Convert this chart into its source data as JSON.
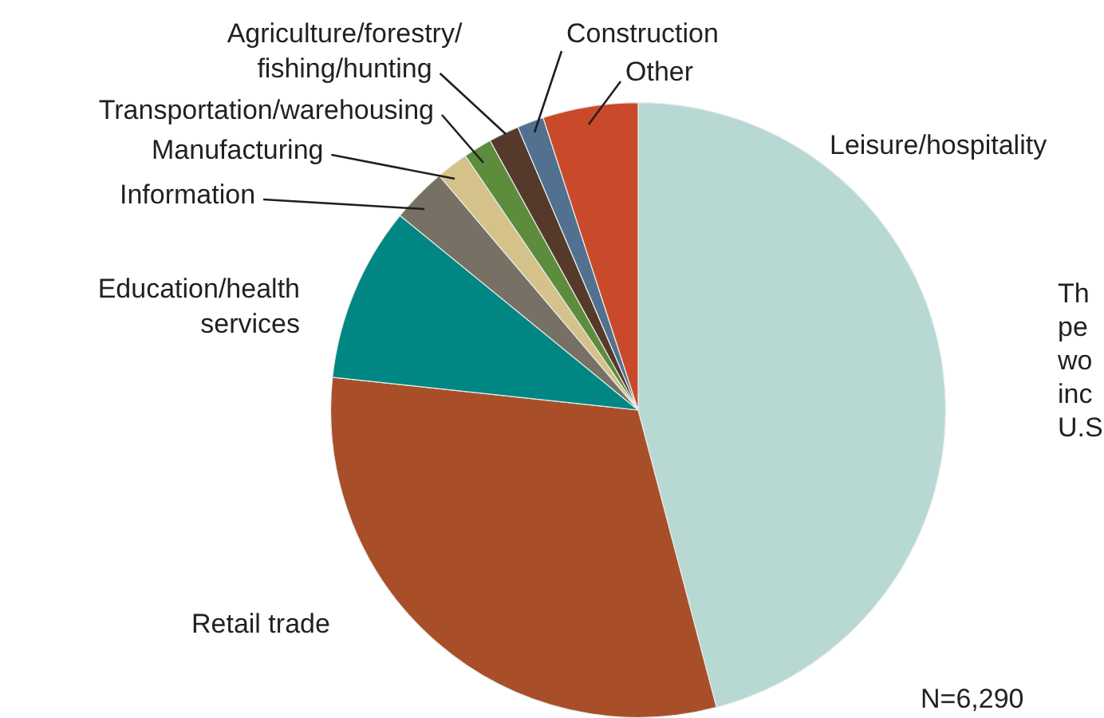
{
  "chart_data": {
    "type": "pie",
    "categories": [
      "Leisure/hospitality",
      "Retail trade",
      "Education/health services",
      "Information",
      "Manufacturing",
      "Transportation/warehousing",
      "Agriculture/forestry/ fishing/hunting",
      "Construction",
      "Other"
    ],
    "values": [
      45.9,
      30.8,
      9.2,
      2.9,
      1.7,
      1.5,
      1.6,
      1.4,
      5.0
    ],
    "colors": [
      "#b8d9d3",
      "#a84f2a",
      "#008783",
      "#777064",
      "#d4c28a",
      "#5e8c3d",
      "#553a2b",
      "#52708f",
      "#c94a2a"
    ],
    "annotations": [
      "N=6,290",
      "Th",
      "pe",
      "wo",
      "inc",
      "U.S"
    ],
    "legend": false
  }
}
